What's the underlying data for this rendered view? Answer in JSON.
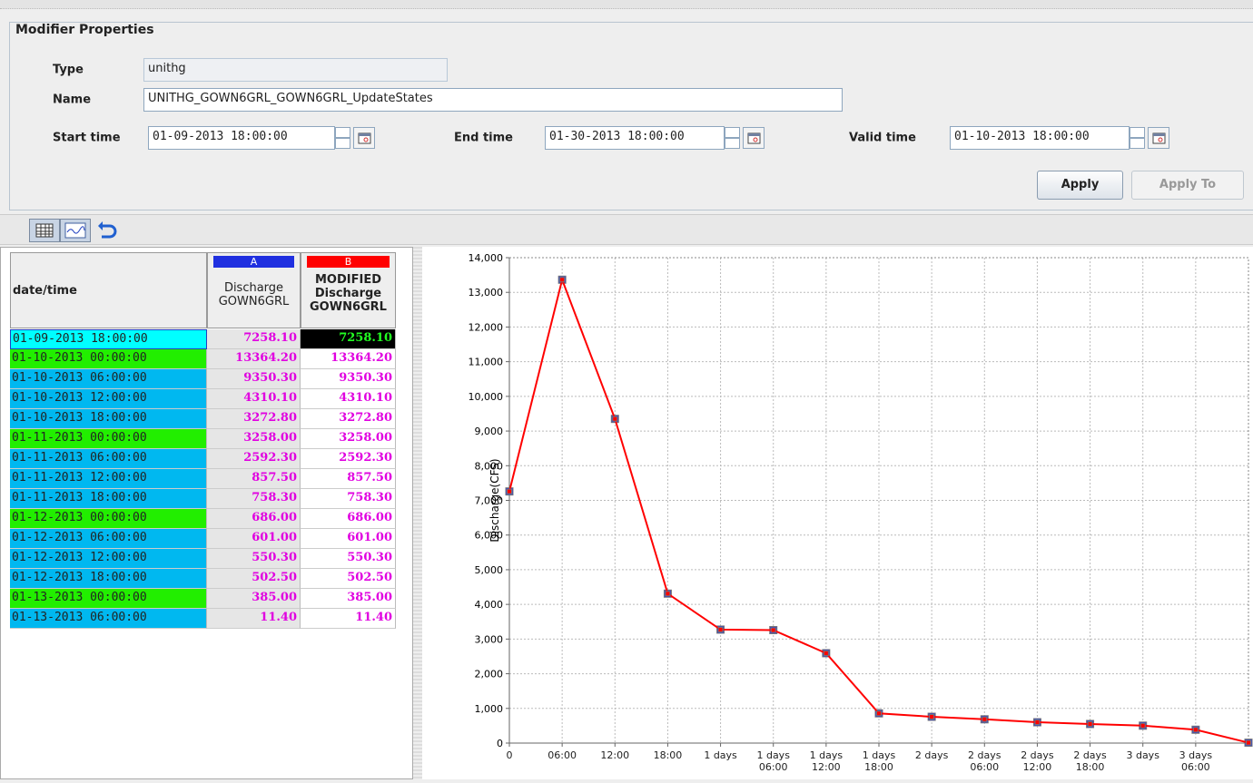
{
  "form": {
    "title": "Modifier Properties",
    "fields": [
      {
        "label": "Type",
        "value": "unithg"
      },
      {
        "label": "Name",
        "value": "UNITHG_GOWN6GRL_GOWN6GRL_UpdateStates"
      },
      {
        "label": "Start time",
        "value": "01-09-2013 18:00:00"
      },
      {
        "label": "End time",
        "value": "01-30-2013 18:00:00"
      },
      {
        "label": "Valid time",
        "value": "01-10-2013 18:00:00"
      }
    ],
    "buttons": [
      "Apply",
      "Apply To"
    ]
  },
  "table": {
    "header": "date/time",
    "columns": [
      {
        "letter": "A",
        "lines": [
          "Discharge",
          "GOWN6GRL"
        ]
      },
      {
        "letter": "B",
        "lines": [
          "MODIFIED",
          "Discharge",
          "GOWN6GRL"
        ]
      }
    ],
    "rows": [
      [
        "01-09-2013 18:00:00",
        "7258.10",
        "7258.10"
      ],
      [
        "01-10-2013 00:00:00",
        "13364.20",
        "13364.20"
      ],
      [
        "01-10-2013 06:00:00",
        "9350.30",
        "9350.30"
      ],
      [
        "01-10-2013 12:00:00",
        "4310.10",
        "4310.10"
      ],
      [
        "01-10-2013 18:00:00",
        "3272.80",
        "3272.80"
      ],
      [
        "01-11-2013 00:00:00",
        "3258.00",
        "3258.00"
      ],
      [
        "01-11-2013 06:00:00",
        "2592.30",
        "2592.30"
      ],
      [
        "01-11-2013 12:00:00",
        "857.50",
        "857.50"
      ],
      [
        "01-11-2013 18:00:00",
        "758.30",
        "758.30"
      ],
      [
        "01-12-2013 00:00:00",
        "686.00",
        "686.00"
      ],
      [
        "01-12-2013 06:00:00",
        "601.00",
        "601.00"
      ],
      [
        "01-12-2013 12:00:00",
        "550.30",
        "550.30"
      ],
      [
        "01-12-2013 18:00:00",
        "502.50",
        "502.50"
      ],
      [
        "01-13-2013 00:00:00",
        "385.00",
        "385.00"
      ],
      [
        "01-13-2013 06:00:00",
        "11.40",
        "11.40"
      ]
    ]
  },
  "chart_data": {
    "type": "line",
    "ylabel": "Discharge(CFS)",
    "x": [
      0,
      6,
      12,
      18,
      24,
      30,
      36,
      42,
      48,
      54,
      60,
      66,
      72,
      78,
      84
    ],
    "series": [
      {
        "color": "#2030e0",
        "values": [
          7258.1,
          13364.2,
          9350.3,
          4310.1,
          3272.8,
          3258,
          2592.3,
          857.5,
          758.3,
          686,
          601,
          550.3,
          502.5,
          385,
          11.4
        ]
      },
      {
        "color": "#ff0000",
        "values": [
          7258.1,
          13364.2,
          9350.3,
          4310.1,
          3272.8,
          3258,
          2592.3,
          857.5,
          758.3,
          686,
          601,
          550.3,
          502.5,
          385,
          11.4
        ]
      }
    ],
    "xlim": [
      0,
      84
    ],
    "xticks": [
      0,
      {
        "value": 6,
        "label": "06:00"
      },
      {
        "value": 12,
        "label": "12:00"
      },
      {
        "value": 18,
        "label": "18:00"
      },
      {
        "value": 24,
        "label": "1 days"
      },
      {
        "value": 30,
        "label": "1 days\n06:00"
      },
      {
        "value": 36,
        "label": "1 days\n12:00"
      },
      {
        "value": 42,
        "label": "1 days\n18:00"
      },
      {
        "value": 48,
        "label": "2 days"
      },
      {
        "value": 54,
        "label": "2 days\n06:00"
      },
      {
        "value": 60,
        "label": "2 days\n12:00"
      },
      {
        "value": 66,
        "label": "2 days\n18:00"
      },
      {
        "value": 72,
        "label": "3 days"
      },
      {
        "value": 78,
        "label": "3 days\n06:00"
      }
    ],
    "ylim": [
      0,
      14000
    ],
    "yticks": [
      0,
      {
        "value": 1000,
        "label": "1,000"
      },
      {
        "value": 2000,
        "label": "2,000"
      },
      {
        "value": 3000,
        "label": "3,000"
      },
      {
        "value": 4000,
        "label": "4,000"
      },
      {
        "value": 5000,
        "label": "5,000"
      },
      {
        "value": 6000,
        "label": "6,000"
      },
      {
        "value": 7000,
        "label": "7,000"
      },
      {
        "value": 8000,
        "label": "8,000"
      },
      {
        "value": 9000,
        "label": "9,000"
      },
      {
        "value": 10000,
        "label": "10,000"
      },
      {
        "value": 11000,
        "label": "11,000"
      },
      {
        "value": 12000,
        "label": "12,000"
      },
      {
        "value": 13000,
        "label": "13,000"
      },
      {
        "value": 14000,
        "label": "14,000"
      }
    ],
    "grid": true
  }
}
